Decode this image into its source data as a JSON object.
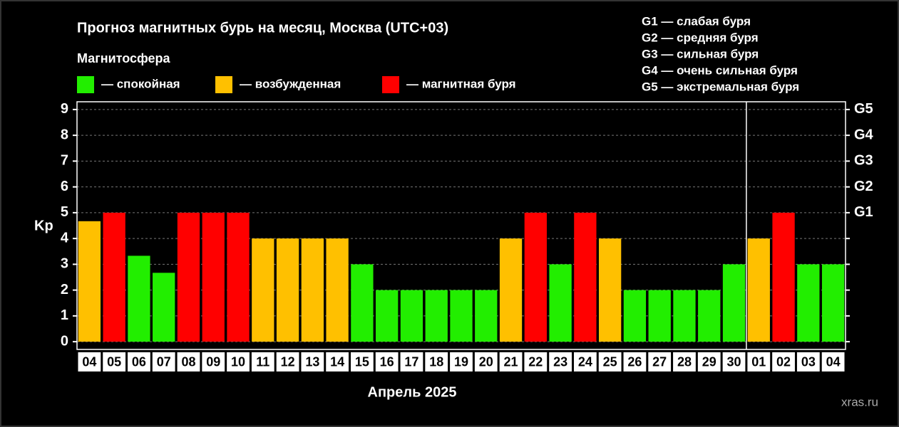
{
  "chart_data": {
    "type": "bar",
    "title": "Прогноз магнитных бурь на месяц, Москва (UTC+03)",
    "legend_title": "Магнитосфера",
    "legend": [
      {
        "label": "— спокойная",
        "color": "#22ee00"
      },
      {
        "label": "— возбужденная",
        "color": "#ffc000"
      },
      {
        "label": "— магнитная буря",
        "color": "#ff0000"
      }
    ],
    "scale_notes": [
      "G1 — слабая буря",
      "G2 — средняя буря",
      "G3 — сильная буря",
      "G4 — очень сильная буря",
      "G5 — экстремальная буря"
    ],
    "y_label": "Kp",
    "x_label": "Апрель 2025",
    "watermark": "xras.ru",
    "categories": [
      "04",
      "05",
      "06",
      "07",
      "08",
      "09",
      "10",
      "11",
      "12",
      "13",
      "14",
      "15",
      "16",
      "17",
      "18",
      "19",
      "20",
      "21",
      "22",
      "23",
      "24",
      "25",
      "26",
      "27",
      "28",
      "29",
      "30",
      "01",
      "02",
      "03",
      "04"
    ],
    "values": [
      4.67,
      5,
      3.33,
      2.67,
      5,
      5,
      5,
      4,
      4,
      4,
      4,
      3,
      2,
      2,
      2,
      2,
      2,
      4,
      5,
      3,
      5,
      4,
      2,
      2,
      2,
      2,
      3,
      4,
      5,
      3,
      3
    ],
    "colors": [
      "#ffc000",
      "#ff0000",
      "#22ee00",
      "#22ee00",
      "#ff0000",
      "#ff0000",
      "#ff0000",
      "#ffc000",
      "#ffc000",
      "#ffc000",
      "#ffc000",
      "#22ee00",
      "#22ee00",
      "#22ee00",
      "#22ee00",
      "#22ee00",
      "#22ee00",
      "#ffc000",
      "#ff0000",
      "#22ee00",
      "#ff0000",
      "#ffc000",
      "#22ee00",
      "#22ee00",
      "#22ee00",
      "#22ee00",
      "#22ee00",
      "#ffc000",
      "#ff0000",
      "#22ee00",
      "#22ee00"
    ],
    "ylim": [
      -0.3,
      9.3
    ],
    "yticks": [
      0,
      1,
      2,
      3,
      4,
      5,
      6,
      7,
      8,
      9
    ],
    "y2lim": [
      -0.3,
      9.3
    ],
    "y2ticks": [
      {
        "value": 5,
        "label": "G1"
      },
      {
        "value": 6,
        "label": "G2"
      },
      {
        "value": 7,
        "label": "G3"
      },
      {
        "value": 8,
        "label": "G4"
      },
      {
        "value": 9,
        "label": "G5"
      }
    ],
    "grid": true
  }
}
